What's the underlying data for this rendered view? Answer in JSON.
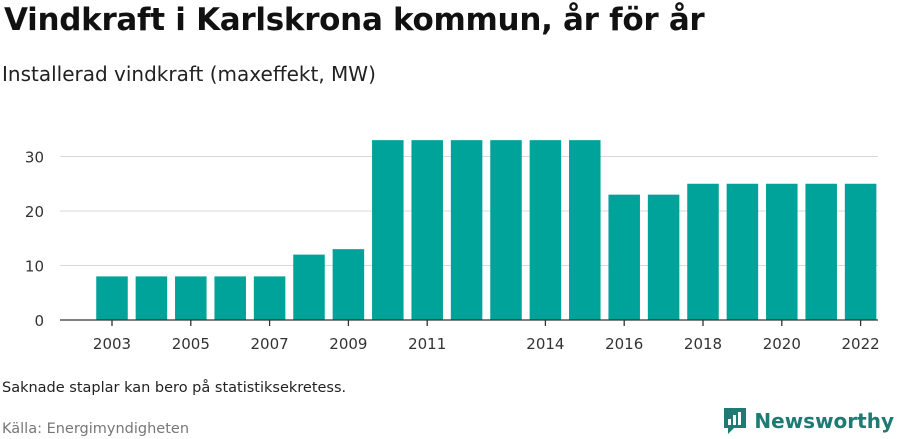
{
  "header": {
    "title": "Vindkraft i Karlskrona kommun, år för år",
    "subtitle": "Installerad vindkraft (maxeffekt, MW)"
  },
  "footer": {
    "note": "Saknade staplar kan bero på statistiksekretess.",
    "source": "Källa: Energimyndigheten",
    "brand": "Newsworthy",
    "brand_icon": "newsworthy-logo-icon"
  },
  "colors": {
    "bar": "#00a39a",
    "grid": "#d9d9d9",
    "axis": "#333333",
    "brand": "#1f7a74"
  },
  "chart_data": {
    "type": "bar",
    "categories": [
      "2003",
      "2004",
      "2005",
      "2006",
      "2007",
      "2008",
      "2009",
      "2010",
      "2011",
      "2012",
      "2013",
      "2014",
      "2015",
      "2016",
      "2017",
      "2018",
      "2019",
      "2020",
      "2021",
      "2022"
    ],
    "values": [
      8,
      8,
      8,
      8,
      8,
      12,
      13,
      33,
      33,
      33,
      33,
      33,
      33,
      23,
      23,
      25,
      25,
      25,
      25,
      25
    ],
    "visible_xticks": [
      "2003",
      "2005",
      "2007",
      "2009",
      "2011",
      "2014",
      "2016",
      "2018",
      "2020",
      "2022"
    ],
    "yticks": [
      0,
      10,
      20,
      30
    ],
    "ylim": [
      0,
      35
    ],
    "grid": true,
    "legend": "none",
    "xlabel": "",
    "ylabel": ""
  }
}
